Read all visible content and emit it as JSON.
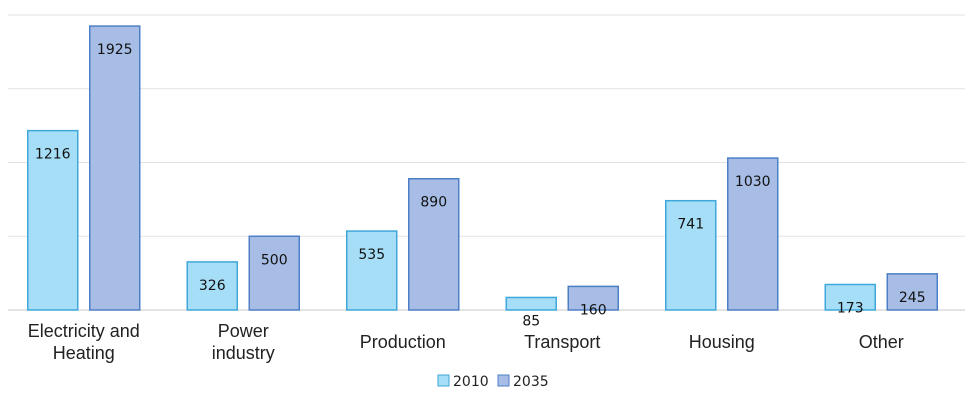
{
  "chart_data": {
    "type": "bar",
    "categories": [
      [
        "Electricity and",
        "Heating"
      ],
      [
        "Power",
        "industry"
      ],
      [
        "Production"
      ],
      [
        "Transport"
      ],
      [
        "Housing"
      ],
      [
        "Other"
      ]
    ],
    "series": [
      {
        "name": "2010",
        "values": [
          1216,
          326,
          535,
          85,
          741,
          173
        ],
        "color": "#a6def7",
        "stroke": "#3fa7d9"
      },
      {
        "name": "2035",
        "values": [
          1925,
          500,
          890,
          160,
          1030,
          245
        ],
        "color": "#a7bde5",
        "stroke": "#4d7fc6"
      }
    ],
    "ylim": [
      0,
      2000
    ],
    "grid": true,
    "legend": "bottom-center",
    "xlabel": "",
    "ylabel": "",
    "title": ""
  }
}
